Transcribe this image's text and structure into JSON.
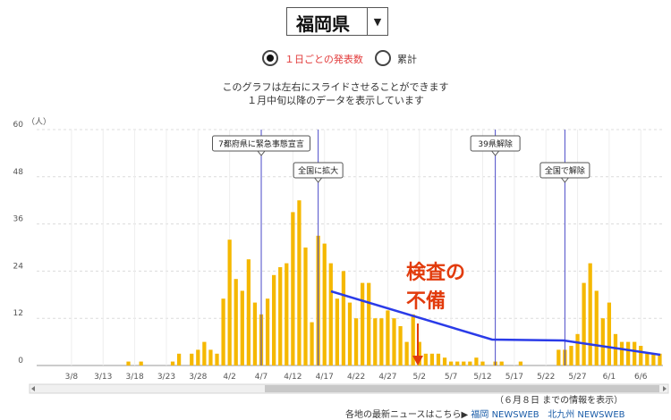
{
  "header": {
    "prefecture": "福岡県",
    "dropdown_arrow": "▼"
  },
  "mode_toggle": {
    "options": [
      {
        "label": "１日ごとの発表数",
        "checked": true,
        "color": "#e23b3b"
      },
      {
        "label": "累計",
        "checked": false
      }
    ]
  },
  "info_lines": [
    "このグラフは左右にスライドさせることができます",
    "１月中旬以降のデータを表示しています"
  ],
  "chart_data": {
    "type": "bar",
    "y_unit": "（人）",
    "ylim": [
      0,
      60
    ],
    "y_ticks": [
      0,
      12,
      24,
      36,
      48,
      60
    ],
    "grid": true,
    "bar_color": "#f5b800",
    "x_start": "3/3",
    "x_tick_labels": [
      "3/8",
      "3/13",
      "3/18",
      "3/23",
      "3/28",
      "4/2",
      "4/7",
      "4/12",
      "4/17",
      "4/22",
      "4/27",
      "5/2",
      "5/7",
      "5/12",
      "5/17",
      "5/22",
      "5/27",
      "6/1",
      "6/6"
    ],
    "values": [
      0,
      0,
      0,
      0,
      0,
      0,
      0,
      0,
      0,
      0,
      0,
      0,
      0,
      0,
      1,
      0,
      1,
      0,
      0,
      0,
      0,
      1,
      3,
      0,
      3,
      4,
      6,
      4,
      3,
      17,
      32,
      22,
      19,
      27,
      16,
      13,
      17,
      23,
      25,
      26,
      39,
      42,
      30,
      11,
      33,
      31,
      26,
      17,
      24,
      16,
      12,
      21,
      21,
      12,
      12,
      14,
      12,
      10,
      6,
      13,
      6,
      3,
      3,
      3,
      2,
      1,
      1,
      1,
      1,
      2,
      1,
      0,
      1,
      1,
      0,
      0,
      1,
      0,
      0,
      0,
      0,
      0,
      4,
      4,
      5,
      8,
      21,
      26,
      19,
      12,
      16,
      8,
      6,
      6,
      6,
      5,
      3,
      3,
      3
    ],
    "events": [
      {
        "date": "4/7",
        "label": "7都府県に緊急事態宣言"
      },
      {
        "date": "4/16",
        "label": "全国に拡大"
      },
      {
        "date": "5/14",
        "label": "39県解除"
      },
      {
        "date": "5/25",
        "label": "全国で解除"
      }
    ],
    "trend_line_color": "#2a3be8"
  },
  "annotation": {
    "line1": "検査の",
    "line2": "不備",
    "color": "#e23b0c"
  },
  "footer": {
    "updated_note": "（６月８日 までの情報を表示）",
    "news_prefix": "各地の最新ニュースはこちら▶",
    "links": [
      "福岡 NEWSWEB",
      "北九州 NEWSWEB"
    ]
  }
}
